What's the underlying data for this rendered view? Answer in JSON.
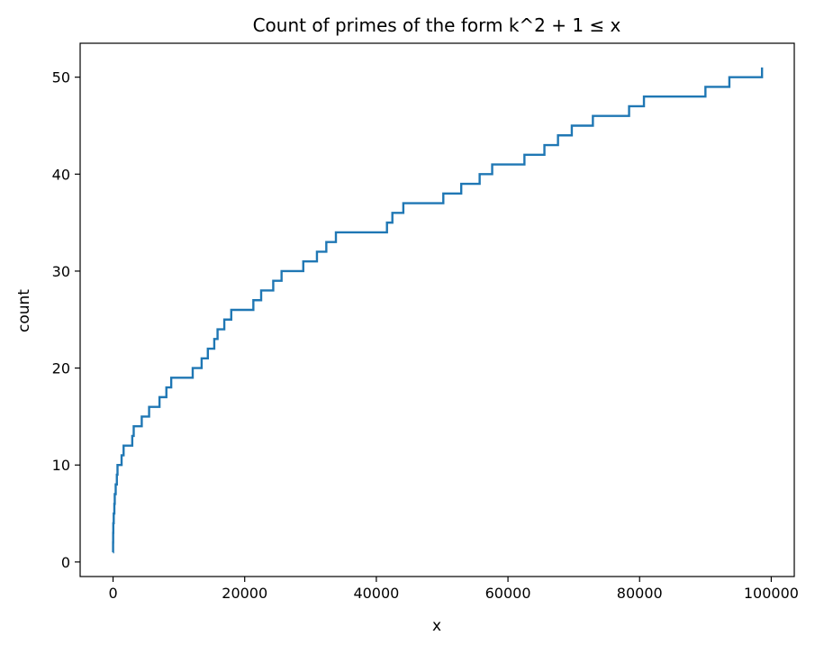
{
  "chart_data": {
    "type": "line",
    "drawstyle": "steps-post",
    "title": "Count of primes of the form k^2 + 1 ≤ x",
    "xlabel": "x",
    "ylabel": "count",
    "xlim": [
      -5000,
      103500
    ],
    "ylim": [
      -1.5,
      53.5
    ],
    "xticks": [
      0,
      20000,
      40000,
      60000,
      80000,
      100000
    ],
    "yticks": [
      0,
      10,
      20,
      30,
      40,
      50
    ],
    "xtick_labels": [
      "0",
      "20000",
      "40000",
      "60000",
      "80000",
      "100000"
    ],
    "ytick_labels": [
      "0",
      "10",
      "20",
      "30",
      "40",
      "50"
    ],
    "grid": false,
    "legend": "none",
    "series": [
      {
        "color": "#1f77b4",
        "x": [
          2,
          5,
          17,
          37,
          101,
          197,
          257,
          401,
          577,
          677,
          1297,
          1601,
          2917,
          3137,
          4357,
          5477,
          7057,
          8101,
          8837,
          12101,
          13457,
          14401,
          15377,
          15877,
          16901,
          17957,
          21317,
          22501,
          24337,
          25601,
          28901,
          30977,
          32401,
          33857,
          41617,
          42437,
          44101,
          50177,
          52901,
          55697,
          57601,
          62501,
          65537,
          67601,
          69697,
          72901,
          78401,
          80657,
          90001,
          93637,
          98597
        ],
        "y": [
          1,
          2,
          3,
          4,
          5,
          6,
          7,
          8,
          9,
          10,
          11,
          12,
          13,
          14,
          15,
          16,
          17,
          18,
          19,
          20,
          21,
          22,
          23,
          24,
          25,
          26,
          27,
          28,
          29,
          30,
          31,
          32,
          33,
          34,
          35,
          36,
          37,
          38,
          39,
          40,
          41,
          42,
          43,
          44,
          45,
          46,
          47,
          48,
          49,
          50,
          51
        ]
      }
    ]
  }
}
